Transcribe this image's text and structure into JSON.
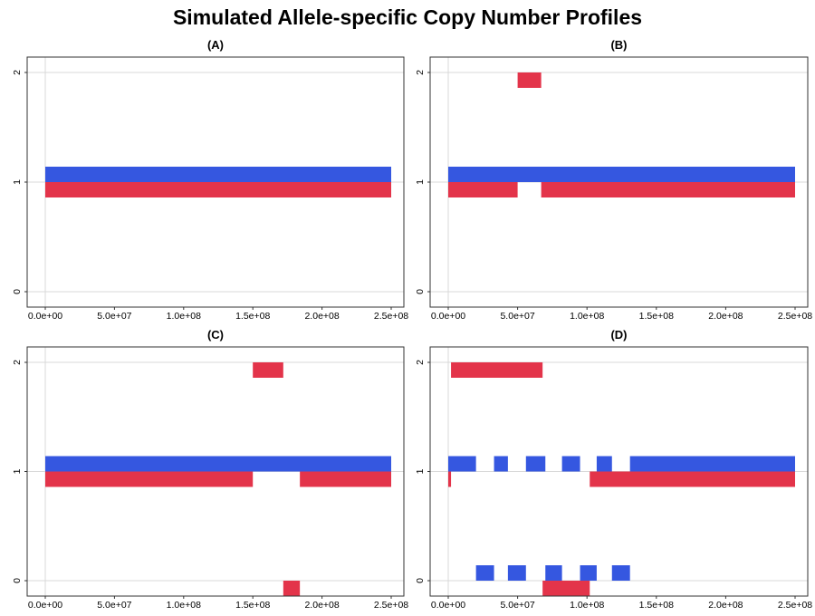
{
  "title": "Simulated Allele-specific Copy Number Profiles",
  "colors": {
    "allele_a": "#3557e0",
    "allele_b": "#e3344a",
    "grid": "#d9d9d9",
    "frame": "#333333"
  },
  "chart_data": [
    {
      "type": "segment",
      "panel": "(A)",
      "xlim": [
        0,
        250000000
      ],
      "ylim": [
        0,
        2
      ],
      "x_ticks": [
        0,
        50000000,
        100000000,
        150000000,
        200000000,
        250000000
      ],
      "x_tick_labels": [
        "0.0e+00",
        "5.0e+07",
        "1.0e+08",
        "1.5e+08",
        "2.0e+08",
        "2.5e+08"
      ],
      "y_ticks": [
        0,
        1,
        2
      ],
      "y_tick_labels": [
        "0",
        "1",
        "2"
      ],
      "series": [
        {
          "segments": [
            {
              "start": 0,
              "end": 250000000,
              "cn": 1
            }
          ]
        },
        {
          "segments": [
            {
              "start": 0,
              "end": 250000000,
              "cn": 1
            }
          ]
        }
      ]
    },
    {
      "type": "segment",
      "panel": "(B)",
      "xlim": [
        0,
        250000000
      ],
      "ylim": [
        0,
        2
      ],
      "x_ticks": [
        0,
        50000000,
        100000000,
        150000000,
        200000000,
        250000000
      ],
      "x_tick_labels": [
        "0.0e+00",
        "5.0e+07",
        "1.0e+08",
        "1.5e+08",
        "2.0e+08",
        "2.5e+08"
      ],
      "y_ticks": [
        0,
        1,
        2
      ],
      "y_tick_labels": [
        "0",
        "1",
        "2"
      ],
      "series": [
        {
          "segments": [
            {
              "start": 0,
              "end": 250000000,
              "cn": 1
            }
          ]
        },
        {
          "segments": [
            {
              "start": 0,
              "end": 50000000,
              "cn": 1
            },
            {
              "start": 50000000,
              "end": 67000000,
              "cn": 2
            },
            {
              "start": 67000000,
              "end": 250000000,
              "cn": 1
            }
          ]
        }
      ]
    },
    {
      "type": "segment",
      "panel": "(C)",
      "xlim": [
        0,
        250000000
      ],
      "ylim": [
        0,
        2
      ],
      "x_ticks": [
        0,
        50000000,
        100000000,
        150000000,
        200000000,
        250000000
      ],
      "x_tick_labels": [
        "0.0e+00",
        "5.0e+07",
        "1.0e+08",
        "1.5e+08",
        "2.0e+08",
        "2.5e+08"
      ],
      "y_ticks": [
        0,
        1,
        2
      ],
      "y_tick_labels": [
        "0",
        "1",
        "2"
      ],
      "series": [
        {
          "segments": [
            {
              "start": 0,
              "end": 250000000,
              "cn": 1
            }
          ]
        },
        {
          "segments": [
            {
              "start": 0,
              "end": 150000000,
              "cn": 1
            },
            {
              "start": 150000000,
              "end": 172000000,
              "cn": 2
            },
            {
              "start": 172000000,
              "end": 184000000,
              "cn": 0
            },
            {
              "start": 184000000,
              "end": 250000000,
              "cn": 1
            }
          ]
        }
      ]
    },
    {
      "type": "segment",
      "panel": "(D)",
      "xlim": [
        0,
        250000000
      ],
      "ylim": [
        0,
        2
      ],
      "x_ticks": [
        0,
        50000000,
        100000000,
        150000000,
        200000000,
        250000000
      ],
      "x_tick_labels": [
        "0.0e+00",
        "5.0e+07",
        "1.0e+08",
        "1.5e+08",
        "2.0e+08",
        "2.5e+08"
      ],
      "y_ticks": [
        0,
        1,
        2
      ],
      "y_tick_labels": [
        "0",
        "1",
        "2"
      ],
      "series": [
        {
          "segments": [
            {
              "start": 0,
              "end": 20000000,
              "cn": 1
            },
            {
              "start": 20000000,
              "end": 33000000,
              "cn": 0
            },
            {
              "start": 33000000,
              "end": 43000000,
              "cn": 1
            },
            {
              "start": 43000000,
              "end": 56000000,
              "cn": 0
            },
            {
              "start": 56000000,
              "end": 70000000,
              "cn": 1
            },
            {
              "start": 70000000,
              "end": 82000000,
              "cn": 0
            },
            {
              "start": 82000000,
              "end": 95000000,
              "cn": 1
            },
            {
              "start": 95000000,
              "end": 107000000,
              "cn": 0
            },
            {
              "start": 107000000,
              "end": 118000000,
              "cn": 1
            },
            {
              "start": 118000000,
              "end": 131000000,
              "cn": 0
            },
            {
              "start": 131000000,
              "end": 250000000,
              "cn": 1
            }
          ]
        },
        {
          "segments": [
            {
              "start": 0,
              "end": 2000000,
              "cn": 1
            },
            {
              "start": 2000000,
              "end": 68000000,
              "cn": 2
            },
            {
              "start": 68000000,
              "end": 102000000,
              "cn": 0
            },
            {
              "start": 102000000,
              "end": 250000000,
              "cn": 1
            }
          ]
        }
      ]
    }
  ]
}
